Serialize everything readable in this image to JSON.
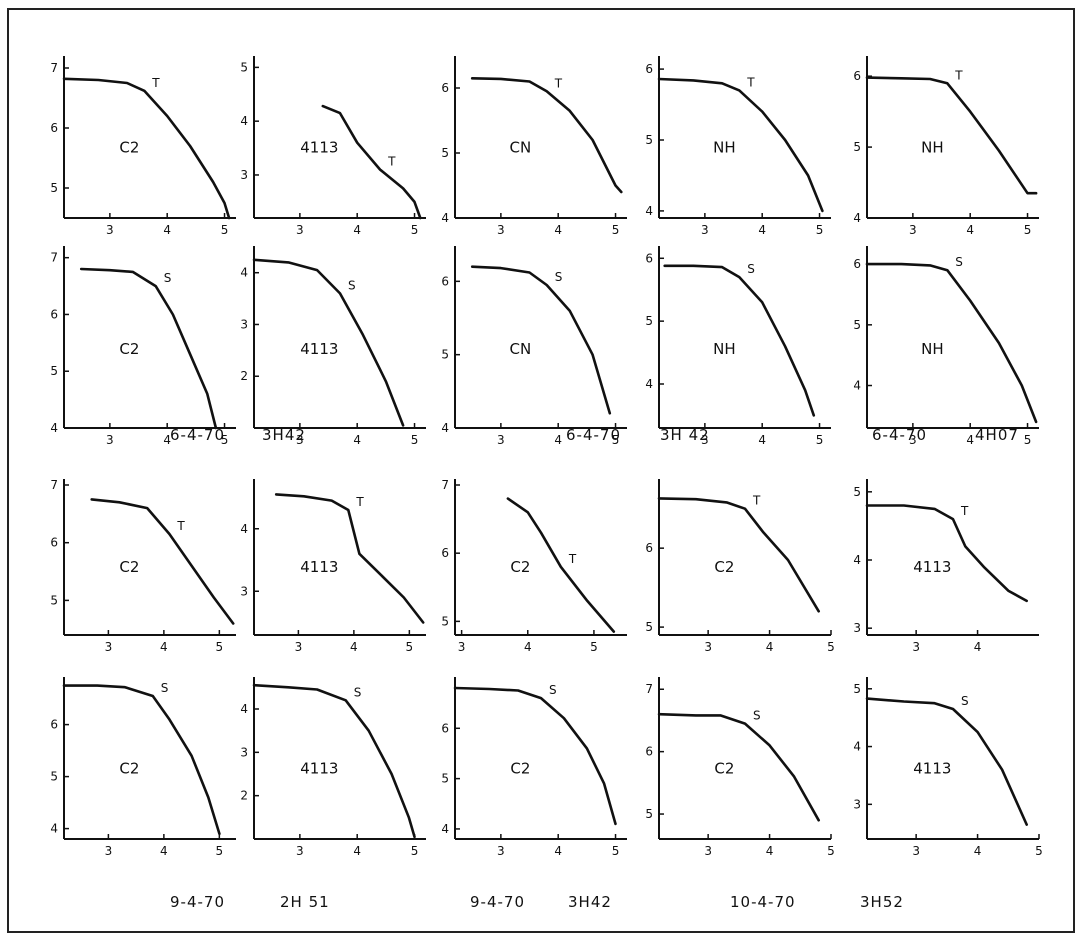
{
  "chart_data": [
    {
      "type": "line",
      "row": 0,
      "col": 0,
      "panel_label": "C2",
      "curve_label": "T",
      "xlim": [
        2.2,
        5.2
      ],
      "ylim": [
        4.5,
        7.1
      ],
      "xticks": [
        3,
        4,
        5
      ],
      "yticks": [
        5,
        6,
        7
      ],
      "x": [
        2.2,
        2.8,
        3.3,
        3.6,
        4.0,
        4.4,
        4.8,
        5.0,
        5.08
      ],
      "y": [
        6.82,
        6.8,
        6.75,
        6.62,
        6.2,
        5.7,
        5.1,
        4.75,
        4.5
      ]
    },
    {
      "type": "line",
      "row": 0,
      "col": 1,
      "panel_label": "4113",
      "curve_label": "T",
      "xlim": [
        2.2,
        5.2
      ],
      "ylim": [
        2.2,
        5.1
      ],
      "xticks": [
        3,
        4,
        5
      ],
      "yticks": [
        3,
        4,
        5
      ],
      "x": [
        3.4,
        3.7,
        4.0,
        4.4,
        4.8,
        5.0,
        5.1
      ],
      "y": [
        4.28,
        4.15,
        3.6,
        3.1,
        2.75,
        2.5,
        2.2
      ]
    },
    {
      "type": "line",
      "row": 0,
      "col": 2,
      "panel_label": "CN",
      "curve_label": "T",
      "xlim": [
        2.2,
        5.2
      ],
      "ylim": [
        4.0,
        6.4
      ],
      "xticks": [
        3,
        4,
        5
      ],
      "yticks": [
        4,
        5,
        6
      ],
      "x": [
        2.5,
        3.0,
        3.5,
        3.8,
        4.2,
        4.6,
        5.0,
        5.1
      ],
      "y": [
        6.15,
        6.14,
        6.1,
        5.95,
        5.65,
        5.2,
        4.5,
        4.4
      ]
    },
    {
      "type": "line",
      "row": 0,
      "col": 3,
      "panel_label": "NH",
      "curve_label": "T",
      "xlim": [
        2.2,
        5.2
      ],
      "ylim": [
        3.9,
        6.1
      ],
      "xticks": [
        3,
        4,
        5
      ],
      "yticks": [
        4,
        5,
        6
      ],
      "x": [
        2.2,
        2.8,
        3.3,
        3.6,
        4.0,
        4.4,
        4.8,
        5.05
      ],
      "y": [
        5.86,
        5.84,
        5.8,
        5.7,
        5.4,
        5.0,
        4.5,
        4.0
      ]
    },
    {
      "type": "line",
      "row": 0,
      "col": 4,
      "panel_label": "NH",
      "curve_label": "T",
      "xlim": [
        2.2,
        5.2
      ],
      "ylim": [
        4.0,
        6.2
      ],
      "xticks": [
        3,
        4,
        5
      ],
      "yticks": [
        4,
        5,
        6
      ],
      "x": [
        2.2,
        2.8,
        3.3,
        3.6,
        4.0,
        4.5,
        5.0,
        5.15
      ],
      "y": [
        5.98,
        5.97,
        5.96,
        5.9,
        5.5,
        4.95,
        4.35,
        4.35
      ]
    },
    {
      "type": "line",
      "row": 1,
      "col": 0,
      "panel_label": "C2",
      "curve_label": "S",
      "xlim": [
        2.2,
        5.2
      ],
      "ylim": [
        4.0,
        7.1
      ],
      "xticks": [
        3,
        4,
        5
      ],
      "yticks": [
        4,
        5,
        6,
        7
      ],
      "x": [
        2.5,
        3.0,
        3.4,
        3.8,
        4.1,
        4.4,
        4.7,
        4.85
      ],
      "y": [
        6.8,
        6.78,
        6.75,
        6.5,
        6.0,
        5.3,
        4.6,
        4.0
      ]
    },
    {
      "type": "line",
      "row": 1,
      "col": 1,
      "panel_label": "4113",
      "curve_label": "S",
      "xlim": [
        2.2,
        5.2
      ],
      "ylim": [
        1.0,
        4.4
      ],
      "xticks": [
        3,
        4,
        5
      ],
      "yticks": [
        2,
        3,
        4
      ],
      "x": [
        2.2,
        2.8,
        3.3,
        3.7,
        4.1,
        4.5,
        4.8
      ],
      "y": [
        4.25,
        4.2,
        4.05,
        3.6,
        2.8,
        1.9,
        1.05
      ]
    },
    {
      "type": "line",
      "row": 1,
      "col": 2,
      "panel_label": "CN",
      "curve_label": "S",
      "xlim": [
        2.2,
        5.2
      ],
      "ylim": [
        4.0,
        6.4
      ],
      "xticks": [
        3,
        4,
        5
      ],
      "yticks": [
        4,
        5,
        6
      ],
      "x": [
        2.5,
        3.0,
        3.5,
        3.8,
        4.2,
        4.6,
        4.9
      ],
      "y": [
        6.2,
        6.18,
        6.12,
        5.95,
        5.6,
        5.0,
        4.2
      ]
    },
    {
      "type": "line",
      "row": 1,
      "col": 3,
      "panel_label": "NH",
      "curve_label": "S",
      "xlim": [
        2.2,
        5.2
      ],
      "ylim": [
        3.3,
        6.1
      ],
      "xticks": [
        3,
        4,
        5
      ],
      "yticks": [
        4,
        5,
        6
      ],
      "x": [
        2.3,
        2.8,
        3.3,
        3.6,
        4.0,
        4.4,
        4.75,
        4.9
      ],
      "y": [
        5.88,
        5.88,
        5.86,
        5.7,
        5.3,
        4.6,
        3.9,
        3.5
      ]
    },
    {
      "type": "line",
      "row": 1,
      "col": 4,
      "panel_label": "NH",
      "curve_label": "S",
      "xlim": [
        2.2,
        5.2
      ],
      "ylim": [
        3.3,
        6.2
      ],
      "xticks": [
        3,
        4,
        5
      ],
      "yticks": [
        4,
        5,
        6
      ],
      "x": [
        2.2,
        2.8,
        3.3,
        3.6,
        4.0,
        4.5,
        4.9,
        5.15
      ],
      "y": [
        6.0,
        6.0,
        5.98,
        5.9,
        5.4,
        4.7,
        4.0,
        3.4
      ]
    },
    {
      "type": "line",
      "row": 2,
      "col": 0,
      "panel_label": "C2",
      "curve_label": "T",
      "xlim": [
        2.2,
        5.3
      ],
      "ylim": [
        4.4,
        7.0
      ],
      "xticks": [
        3,
        4,
        5
      ],
      "yticks": [
        5,
        6,
        7
      ],
      "x": [
        2.7,
        3.2,
        3.7,
        4.1,
        4.5,
        4.9,
        5.25
      ],
      "y": [
        6.75,
        6.7,
        6.6,
        6.15,
        5.6,
        5.05,
        4.6
      ]
    },
    {
      "type": "line",
      "row": 2,
      "col": 1,
      "panel_label": "4113",
      "curve_label": "T",
      "xlim": [
        2.2,
        5.3
      ],
      "ylim": [
        2.3,
        4.7
      ],
      "xticks": [
        3,
        4,
        5
      ],
      "yticks": [
        3,
        4
      ],
      "x": [
        2.6,
        3.1,
        3.6,
        3.9,
        4.1,
        4.5,
        4.9,
        5.25
      ],
      "y": [
        4.55,
        4.52,
        4.45,
        4.3,
        3.6,
        3.25,
        2.9,
        2.5
      ]
    },
    {
      "type": "line",
      "row": 2,
      "col": 2,
      "panel_label": "C2",
      "curve_label": "T",
      "xlim": [
        2.9,
        5.5
      ],
      "ylim": [
        4.8,
        7.0
      ],
      "xticks": [
        3,
        4,
        5
      ],
      "yticks": [
        5,
        6,
        7
      ],
      "x": [
        3.7,
        4.0,
        4.2,
        4.5,
        4.9,
        5.3
      ],
      "y": [
        6.8,
        6.6,
        6.3,
        5.8,
        5.3,
        4.85
      ]
    },
    {
      "type": "line",
      "row": 2,
      "col": 3,
      "panel_label": "C2",
      "curve_label": "T",
      "xlim": [
        2.2,
        5.0
      ],
      "ylim": [
        4.9,
        6.8
      ],
      "xticks": [
        3,
        4,
        5
      ],
      "yticks": [
        5,
        6
      ],
      "x": [
        2.2,
        2.8,
        3.3,
        3.6,
        3.9,
        4.3,
        4.8
      ],
      "y": [
        6.63,
        6.62,
        6.58,
        6.5,
        6.2,
        5.85,
        5.2
      ]
    },
    {
      "type": "line",
      "row": 2,
      "col": 4,
      "panel_label": "4113",
      "curve_label": "T",
      "xlim": [
        2.2,
        5.0
      ],
      "ylim": [
        2.9,
        5.1
      ],
      "xticks": [
        3,
        4
      ],
      "yticks": [
        3,
        4,
        5
      ],
      "x": [
        2.2,
        2.8,
        3.3,
        3.6,
        3.8,
        4.1,
        4.5,
        4.8
      ],
      "y": [
        4.8,
        4.8,
        4.75,
        4.6,
        4.2,
        3.9,
        3.55,
        3.4
      ]
    },
    {
      "type": "line",
      "row": 3,
      "col": 0,
      "panel_label": "C2",
      "curve_label": "S",
      "xlim": [
        2.2,
        5.3
      ],
      "ylim": [
        3.8,
        6.8
      ],
      "xticks": [
        3,
        4,
        5
      ],
      "yticks": [
        4,
        5,
        6
      ],
      "x": [
        2.2,
        2.8,
        3.3,
        3.8,
        4.1,
        4.5,
        4.8,
        5.0
      ],
      "y": [
        6.75,
        6.75,
        6.72,
        6.55,
        6.1,
        5.4,
        4.6,
        3.9
      ]
    },
    {
      "type": "line",
      "row": 3,
      "col": 1,
      "panel_label": "4113",
      "curve_label": "S",
      "xlim": [
        2.2,
        5.2
      ],
      "ylim": [
        1.0,
        4.6
      ],
      "xticks": [
        3,
        4,
        5
      ],
      "yticks": [
        2,
        3,
        4
      ],
      "x": [
        2.2,
        2.8,
        3.3,
        3.8,
        4.2,
        4.6,
        4.9,
        5.0
      ],
      "y": [
        4.55,
        4.5,
        4.45,
        4.2,
        3.5,
        2.5,
        1.5,
        1.05
      ]
    },
    {
      "type": "line",
      "row": 3,
      "col": 2,
      "panel_label": "C2",
      "curve_label": "S",
      "xlim": [
        2.2,
        5.2
      ],
      "ylim": [
        3.8,
        6.9
      ],
      "xticks": [
        3,
        4,
        5
      ],
      "yticks": [
        4,
        5,
        6
      ],
      "x": [
        2.2,
        2.8,
        3.3,
        3.7,
        4.1,
        4.5,
        4.8,
        5.0
      ],
      "y": [
        6.8,
        6.78,
        6.75,
        6.6,
        6.2,
        5.6,
        4.9,
        4.1
      ]
    },
    {
      "type": "line",
      "row": 3,
      "col": 3,
      "panel_label": "C2",
      "curve_label": "S",
      "xlim": [
        2.2,
        5.0
      ],
      "ylim": [
        4.6,
        7.1
      ],
      "xticks": [
        3,
        4,
        5
      ],
      "yticks": [
        5,
        6,
        7
      ],
      "x": [
        2.2,
        2.8,
        3.2,
        3.6,
        4.0,
        4.4,
        4.8
      ],
      "y": [
        6.6,
        6.58,
        6.58,
        6.45,
        6.1,
        5.6,
        4.9
      ]
    },
    {
      "type": "line",
      "row": 3,
      "col": 4,
      "panel_label": "4113",
      "curve_label": "S",
      "xlim": [
        2.2,
        5.0
      ],
      "ylim": [
        2.4,
        5.1
      ],
      "xticks": [
        3,
        4,
        5
      ],
      "yticks": [
        3,
        4,
        5
      ],
      "x": [
        2.2,
        2.8,
        3.3,
        3.6,
        4.0,
        4.4,
        4.8
      ],
      "y": [
        4.83,
        4.78,
        4.75,
        4.65,
        4.25,
        3.6,
        2.65
      ]
    }
  ],
  "captions": {
    "row2": [
      "6-4-70",
      "3H42",
      "6-4-70",
      "3H 42",
      "6-4-70",
      "4H07"
    ],
    "row4": [
      "9-4-70",
      "2H 51",
      "9-4-70",
      "3H42",
      "10-4-70",
      "3H52"
    ]
  }
}
